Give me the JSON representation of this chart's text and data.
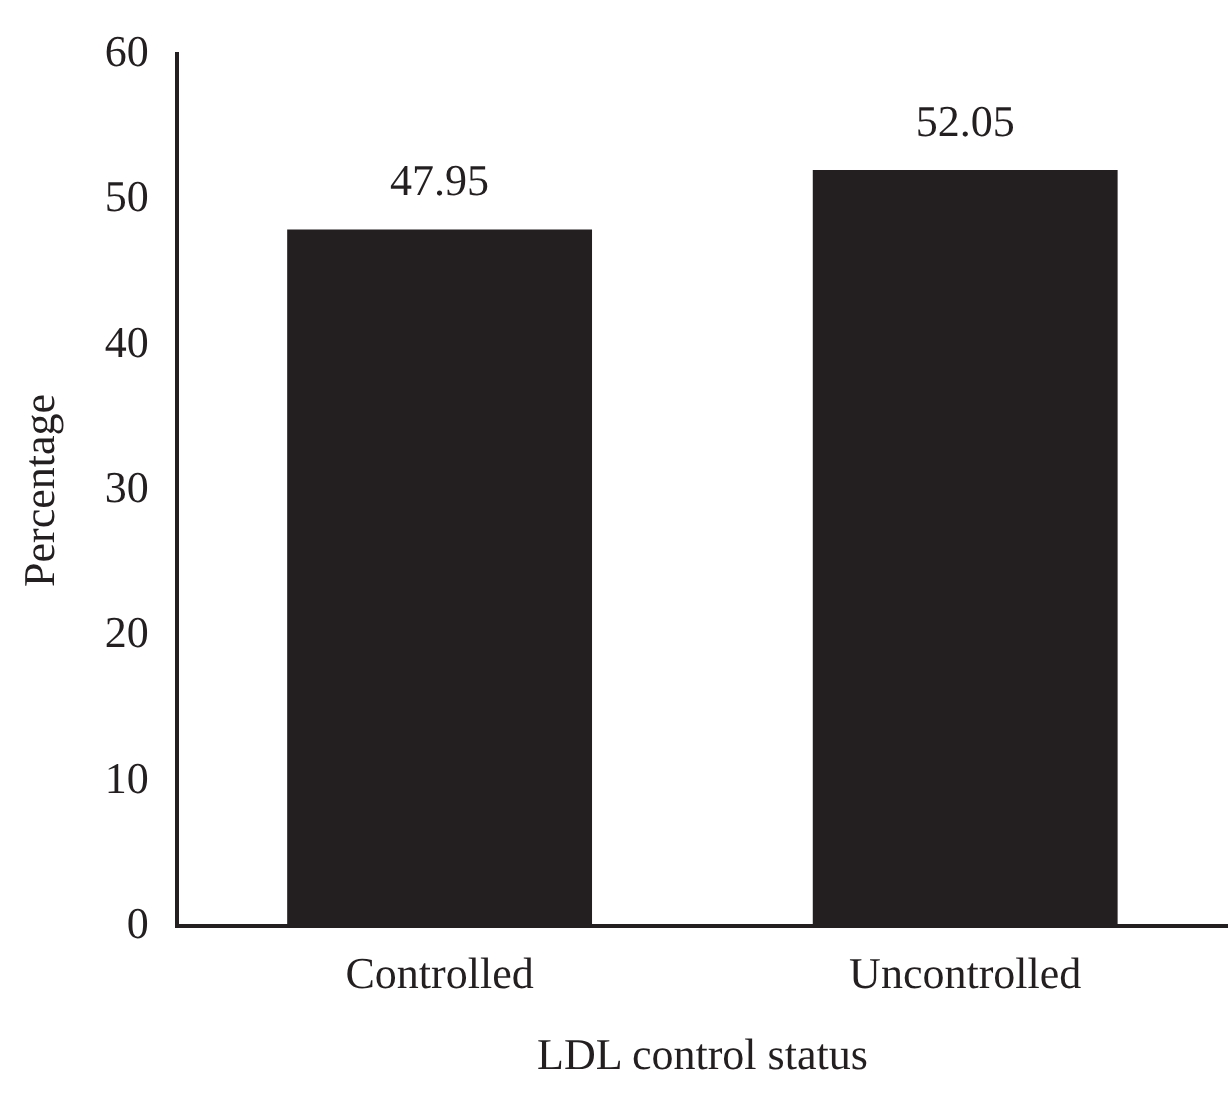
{
  "chart_data": {
    "type": "bar",
    "categories": [
      "Controlled",
      "Uncontrolled"
    ],
    "values": [
      47.95,
      52.05
    ],
    "color": "#231f20",
    "xlabel": "LDL control status",
    "ylabel": "Percentage",
    "ylim": [
      0,
      60
    ],
    "yticks": [
      0,
      10,
      20,
      30,
      40,
      50,
      60
    ],
    "data_labels": true,
    "grid": false,
    "legend": false
  }
}
